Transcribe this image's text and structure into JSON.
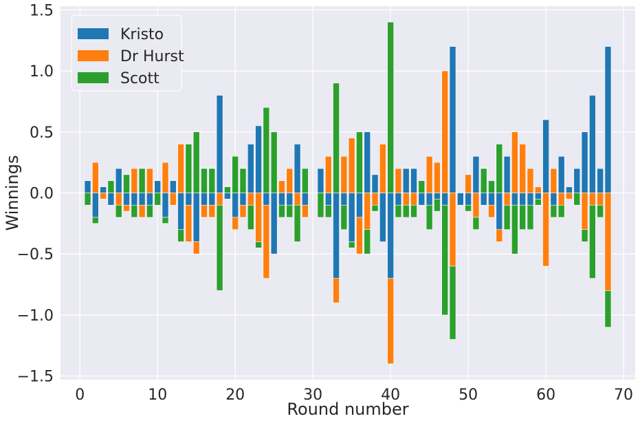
{
  "chart_data": {
    "type": "bar",
    "stacked": true,
    "xlabel": "Round number",
    "ylabel": "Winnings",
    "xlim": [
      -2.5,
      71.5
    ],
    "ylim": [
      -1.53,
      1.53
    ],
    "xticks": [
      0,
      10,
      20,
      30,
      40,
      50,
      60,
      70
    ],
    "xtick_labels": [
      "0",
      "10",
      "20",
      "30",
      "40",
      "50",
      "60",
      "70"
    ],
    "yticks": [
      -1.5,
      -1.0,
      -0.5,
      0.0,
      0.5,
      1.0,
      1.5
    ],
    "ytick_labels": [
      "−1.5",
      "−1.0",
      "−0.5",
      "0.0",
      "0.5",
      "1.0",
      "1.5"
    ],
    "grid": true,
    "legend_position": "top-left",
    "background": "#eaeaf2",
    "colors": {
      "Kristo": "#1f77b4",
      "Dr Hurst": "#ff7f0e",
      "Scott": "#2ca02c"
    },
    "series": [
      {
        "name": "Kristo",
        "rounds": [
          [
            1,
            0.1
          ],
          [
            2,
            -0.2
          ],
          [
            3,
            0.05
          ],
          [
            4,
            -0.1
          ],
          [
            5,
            0.2
          ],
          [
            6,
            -0.1
          ],
          [
            7,
            -0.1
          ],
          [
            8,
            -0.1
          ],
          [
            9,
            -0.1
          ],
          [
            10,
            0.1
          ],
          [
            11,
            -0.2
          ],
          [
            12,
            0.1
          ],
          [
            13,
            -0.3
          ],
          [
            14,
            -0.1
          ],
          [
            15,
            -0.4
          ],
          [
            16,
            -0.1
          ],
          [
            17,
            -0.1
          ],
          [
            18,
            0.8
          ],
          [
            19,
            -0.05
          ],
          [
            20,
            -0.2
          ],
          [
            21,
            -0.1
          ],
          [
            22,
            0.4
          ],
          [
            23,
            0.55
          ],
          [
            24,
            -0.1
          ],
          [
            25,
            -0.5
          ],
          [
            26,
            -0.1
          ],
          [
            27,
            -0.1
          ],
          [
            28,
            0.4
          ],
          [
            29,
            -0.1
          ],
          [
            31,
            0.2
          ],
          [
            32,
            -0.1
          ],
          [
            33,
            -0.7
          ],
          [
            34,
            -0.1
          ],
          [
            35,
            -0.4
          ],
          [
            36,
            -0.2
          ],
          [
            37,
            0.5
          ],
          [
            38,
            0.15
          ],
          [
            39,
            -0.4
          ],
          [
            40,
            -0.7
          ],
          [
            41,
            -0.1
          ],
          [
            42,
            0.2
          ],
          [
            43,
            0.2
          ],
          [
            44,
            -0.1
          ],
          [
            45,
            -0.1
          ],
          [
            46,
            -0.05
          ],
          [
            47,
            -0.1
          ],
          [
            48,
            1.2
          ],
          [
            49,
            -0.1
          ],
          [
            50,
            -0.1
          ],
          [
            51,
            0.3
          ],
          [
            52,
            -0.1
          ],
          [
            53,
            -0.1
          ],
          [
            54,
            -0.3
          ],
          [
            55,
            0.3
          ],
          [
            56,
            -0.1
          ],
          [
            57,
            -0.1
          ],
          [
            58,
            -0.1
          ],
          [
            59,
            -0.05
          ],
          [
            60,
            0.6
          ],
          [
            61,
            -0.1
          ],
          [
            62,
            0.3
          ],
          [
            63,
            0.05
          ],
          [
            64,
            0.2
          ],
          [
            65,
            0.5
          ],
          [
            66,
            0.8
          ],
          [
            67,
            0.2
          ],
          [
            68,
            1.2
          ]
        ]
      },
      {
        "name": "Dr Hurst",
        "rounds": [
          [
            1,
            0.0
          ],
          [
            2,
            0.25
          ],
          [
            3,
            -0.05
          ],
          [
            4,
            0.0
          ],
          [
            5,
            -0.1
          ],
          [
            6,
            -0.05
          ],
          [
            7,
            0.2
          ],
          [
            8,
            -0.1
          ],
          [
            9,
            0.2
          ],
          [
            10,
            0.0
          ],
          [
            11,
            0.25
          ],
          [
            12,
            -0.1
          ],
          [
            13,
            0.4
          ],
          [
            14,
            -0.3
          ],
          [
            15,
            -0.1
          ],
          [
            16,
            -0.1
          ],
          [
            17,
            -0.1
          ],
          [
            18,
            -0.1
          ],
          [
            19,
            0.0
          ],
          [
            20,
            -0.1
          ],
          [
            21,
            -0.1
          ],
          [
            22,
            -0.1
          ],
          [
            23,
            -0.4
          ],
          [
            24,
            -0.6
          ],
          [
            25,
            0.0
          ],
          [
            26,
            0.1
          ],
          [
            27,
            0.2
          ],
          [
            28,
            -0.1
          ],
          [
            29,
            -0.1
          ],
          [
            31,
            0.0
          ],
          [
            32,
            0.3
          ],
          [
            33,
            -0.2
          ],
          [
            34,
            0.3
          ],
          [
            35,
            0.45
          ],
          [
            36,
            -0.3
          ],
          [
            37,
            -0.3
          ],
          [
            38,
            -0.1
          ],
          [
            39,
            0.4
          ],
          [
            40,
            -0.7
          ],
          [
            41,
            0.2
          ],
          [
            42,
            -0.1
          ],
          [
            43,
            -0.1
          ],
          [
            44,
            0.0
          ],
          [
            45,
            0.3
          ],
          [
            46,
            0.25
          ],
          [
            47,
            1.0
          ],
          [
            48,
            -0.6
          ],
          [
            49,
            0.0
          ],
          [
            50,
            0.15
          ],
          [
            51,
            -0.2
          ],
          [
            52,
            0.0
          ],
          [
            53,
            -0.1
          ],
          [
            54,
            -0.1
          ],
          [
            55,
            -0.1
          ],
          [
            56,
            0.5
          ],
          [
            57,
            0.4
          ],
          [
            58,
            0.2
          ],
          [
            59,
            0.05
          ],
          [
            60,
            -0.6
          ],
          [
            61,
            0.2
          ],
          [
            62,
            -0.1
          ],
          [
            63,
            -0.05
          ],
          [
            64,
            0.0
          ],
          [
            65,
            -0.3
          ],
          [
            66,
            -0.1
          ],
          [
            67,
            -0.1
          ],
          [
            68,
            -0.8
          ]
        ]
      },
      {
        "name": "Scott",
        "rounds": [
          [
            1,
            -0.1
          ],
          [
            2,
            -0.05
          ],
          [
            3,
            0.0
          ],
          [
            4,
            0.1
          ],
          [
            5,
            -0.1
          ],
          [
            6,
            0.15
          ],
          [
            7,
            -0.1
          ],
          [
            8,
            0.2
          ],
          [
            9,
            -0.1
          ],
          [
            10,
            -0.1
          ],
          [
            11,
            -0.05
          ],
          [
            12,
            0.0
          ],
          [
            13,
            -0.1
          ],
          [
            14,
            0.4
          ],
          [
            15,
            0.5
          ],
          [
            16,
            0.2
          ],
          [
            17,
            0.2
          ],
          [
            18,
            -0.7
          ],
          [
            19,
            0.05
          ],
          [
            20,
            0.3
          ],
          [
            21,
            0.2
          ],
          [
            22,
            -0.2
          ],
          [
            23,
            -0.05
          ],
          [
            24,
            0.7
          ],
          [
            25,
            0.5
          ],
          [
            26,
            -0.1
          ],
          [
            27,
            -0.1
          ],
          [
            28,
            -0.3
          ],
          [
            29,
            0.2
          ],
          [
            31,
            -0.2
          ],
          [
            32,
            -0.1
          ],
          [
            33,
            0.9
          ],
          [
            34,
            -0.2
          ],
          [
            35,
            -0.05
          ],
          [
            36,
            0.5
          ],
          [
            37,
            -0.2
          ],
          [
            38,
            -0.05
          ],
          [
            39,
            0.0
          ],
          [
            40,
            1.4
          ],
          [
            41,
            -0.1
          ],
          [
            42,
            -0.1
          ],
          [
            43,
            -0.1
          ],
          [
            44,
            0.1
          ],
          [
            45,
            -0.2
          ],
          [
            46,
            -0.1
          ],
          [
            47,
            -0.9
          ],
          [
            48,
            -0.6
          ],
          [
            49,
            0.0
          ],
          [
            50,
            -0.05
          ],
          [
            51,
            -0.1
          ],
          [
            52,
            0.2
          ],
          [
            53,
            0.1
          ],
          [
            54,
            0.4
          ],
          [
            55,
            -0.2
          ],
          [
            56,
            -0.4
          ],
          [
            57,
            -0.2
          ],
          [
            58,
            -0.2
          ],
          [
            59,
            -0.05
          ],
          [
            60,
            0.0
          ],
          [
            61,
            -0.1
          ],
          [
            62,
            -0.1
          ],
          [
            63,
            0.0
          ],
          [
            64,
            -0.1
          ],
          [
            65,
            -0.1
          ],
          [
            66,
            -0.6
          ],
          [
            67,
            -0.1
          ],
          [
            68,
            -0.3
          ]
        ]
      }
    ]
  }
}
